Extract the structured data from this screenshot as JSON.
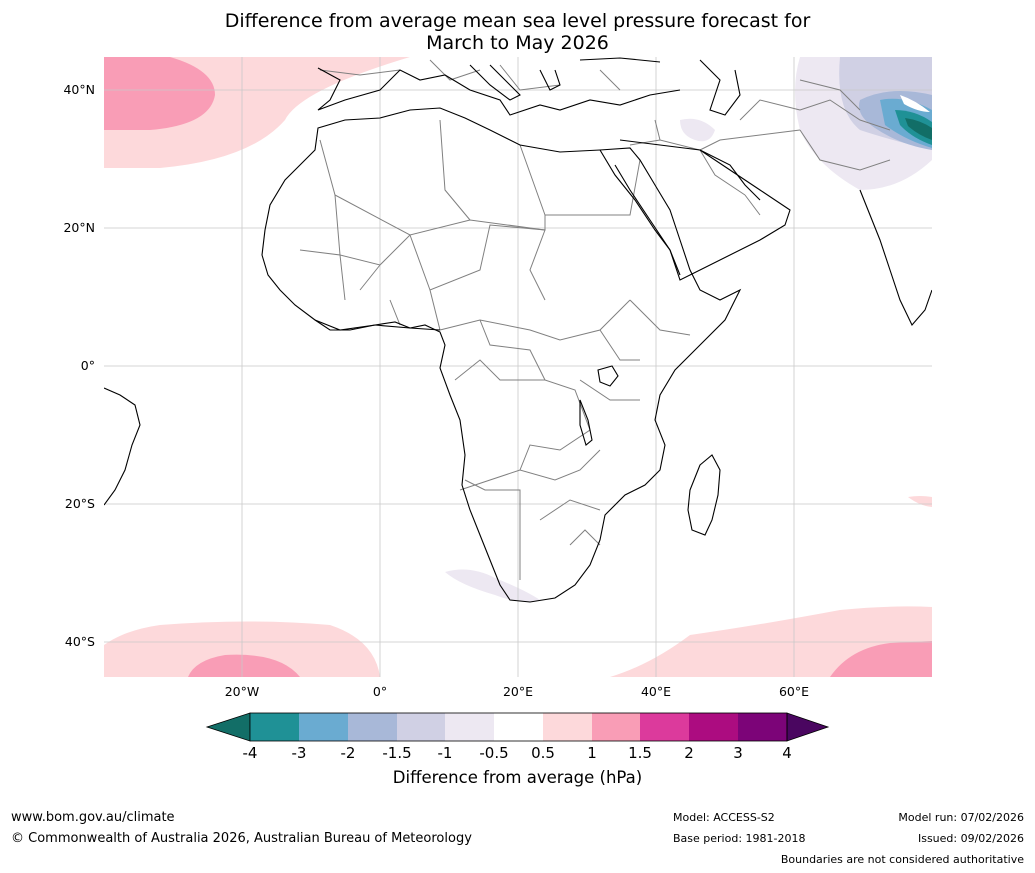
{
  "title": {
    "line1": "Difference from average mean sea level pressure forecast for",
    "line2": "March to May 2026"
  },
  "axes": {
    "lat_labels": [
      "40°N",
      "20°N",
      "0°",
      "20°S",
      "40°S"
    ],
    "lon_labels": [
      "20°W",
      "0°",
      "20°E",
      "40°E",
      "60°E"
    ]
  },
  "colorbar": {
    "labels": [
      "-4",
      "-3",
      "-2",
      "-1.5",
      "-1",
      "-0.5",
      "0.5",
      "1",
      "1.5",
      "2",
      "3",
      "4"
    ],
    "colors": [
      "#126e67",
      "#1f9196",
      "#6aabd1",
      "#a8b8d8",
      "#d0d0e4",
      "#ede8f2",
      "#ffffff",
      "#fdd9db",
      "#f99db6",
      "#dc3a9c",
      "#ac0c80",
      "#7c0478",
      "#4a0660"
    ],
    "title": "Difference from average (hPa)"
  },
  "footer": {
    "website": "www.bom.gov.au/climate",
    "copyright": "© Commonwealth of Australia 2026, Australian Bureau of Meteorology",
    "model": "Model: ACCESS-S2",
    "base_period": "Base period: 1981-2018",
    "model_run": "Model run: 07/02/2026",
    "issued": "Issued: 09/02/2026",
    "disclaimer": "Boundaries are not considered authoritative"
  },
  "colors": {
    "land_outline": "#000000",
    "border": "#808080",
    "grid": "#c8c8c8"
  }
}
